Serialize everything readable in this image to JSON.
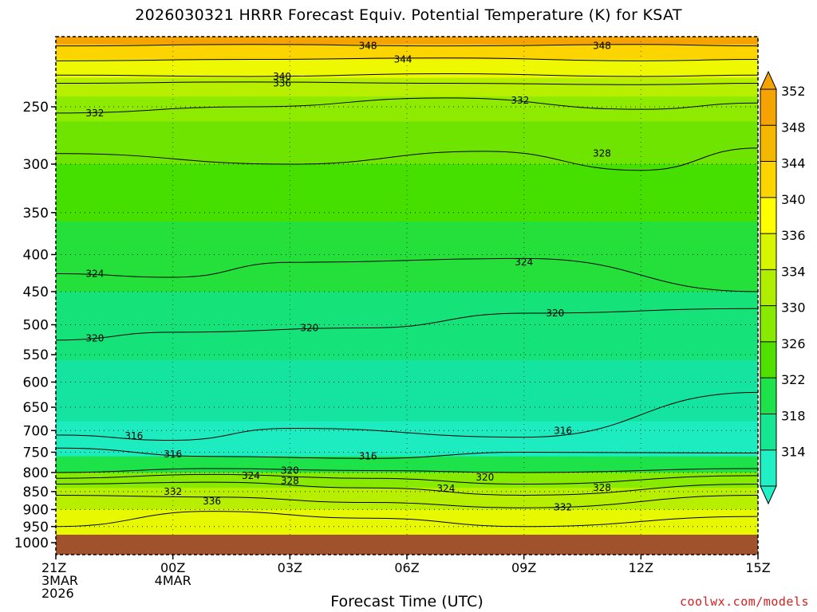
{
  "title": "2026030321 HRRR Forecast Equiv. Potential Temperature (K) for KSAT",
  "xlabel": "Forecast Time (UTC)",
  "credit": "coolwx.com/models",
  "chart_data": {
    "type": "heatmap",
    "title": "2026030321 HRRR Forecast Equiv. Potential Temperature (K) for KSAT",
    "xlabel": "Forecast Time (UTC)",
    "ylabel": "",
    "x_ticks": [
      {
        "hour": 0,
        "lines": [
          "21Z",
          "3MAR",
          "2026"
        ]
      },
      {
        "hour": 3,
        "lines": [
          "00Z",
          "4MAR"
        ]
      },
      {
        "hour": 6,
        "lines": [
          "03Z"
        ]
      },
      {
        "hour": 9,
        "lines": [
          "06Z"
        ]
      },
      {
        "hour": 12,
        "lines": [
          "09Z"
        ]
      },
      {
        "hour": 15,
        "lines": [
          "12Z"
        ]
      },
      {
        "hour": 18,
        "lines": [
          "15Z"
        ]
      }
    ],
    "xlim": [
      0,
      18
    ],
    "y_ticks": [
      250,
      300,
      350,
      400,
      450,
      500,
      550,
      600,
      650,
      700,
      750,
      800,
      850,
      900,
      950,
      1000
    ],
    "ylim": [
      975,
      200
    ],
    "y_scale": "log",
    "grid": true,
    "colorbar": {
      "ticks": [
        352,
        348,
        344,
        340,
        336,
        334,
        330,
        326,
        322,
        318,
        314
      ],
      "segments": [
        {
          "lo": 352,
          "hi": 356,
          "color": "#f5a300"
        },
        {
          "lo": 348,
          "hi": 352,
          "color": "#f5b800"
        },
        {
          "lo": 344,
          "hi": 348,
          "color": "#fcd500"
        },
        {
          "lo": 340,
          "hi": 344,
          "color": "#ffff00"
        },
        {
          "lo": 336,
          "hi": 340,
          "color": "#d8f500"
        },
        {
          "lo": 334,
          "hi": 336,
          "color": "#b0ee00"
        },
        {
          "lo": 330,
          "hi": 334,
          "color": "#88ea00"
        },
        {
          "lo": 326,
          "hi": 330,
          "color": "#4fe000"
        },
        {
          "lo": 322,
          "hi": 326,
          "color": "#1ee24a"
        },
        {
          "lo": 318,
          "hi": 322,
          "color": "#16e691"
        },
        {
          "lo": 314,
          "hi": 318,
          "color": "#20f0c4"
        }
      ]
    },
    "bands": [
      {
        "p": 205,
        "color": "#f5a300"
      },
      {
        "p": 215,
        "color": "#fcd500"
      },
      {
        "p": 228,
        "color": "#eef800"
      },
      {
        "p": 242,
        "color": "#b8ee00"
      },
      {
        "p": 262,
        "color": "#8eeb00"
      },
      {
        "p": 300,
        "color": "#6fe400"
      },
      {
        "p": 360,
        "color": "#45df00"
      },
      {
        "p": 450,
        "color": "#25e03a"
      },
      {
        "p": 560,
        "color": "#16e27a"
      },
      {
        "p": 680,
        "color": "#14e4a0"
      },
      {
        "p": 760,
        "color": "#1debc0"
      },
      {
        "p": 800,
        "color": "#1ee24a"
      },
      {
        "p": 840,
        "color": "#88ea00"
      },
      {
        "p": 900,
        "color": "#b8ee00"
      },
      {
        "p": 975,
        "color": "#e8f800"
      }
    ],
    "contour_levels": [
      314,
      316,
      318,
      320,
      322,
      324,
      326,
      328,
      330,
      332,
      334,
      336,
      338,
      340,
      342,
      344,
      346,
      348
    ],
    "contours": [
      {
        "level": 348,
        "points": [
          [
            0,
            206
          ],
          [
            5,
            205
          ],
          [
            10,
            206
          ],
          [
            15,
            205
          ],
          [
            18,
            206
          ]
        ]
      },
      {
        "level": 344,
        "points": [
          [
            0,
            216
          ],
          [
            5,
            215
          ],
          [
            10,
            214
          ],
          [
            15,
            216
          ],
          [
            18,
            215
          ]
        ]
      },
      {
        "level": 340,
        "points": [
          [
            0,
            226
          ],
          [
            5,
            227
          ],
          [
            10,
            225
          ],
          [
            15,
            227
          ],
          [
            18,
            226
          ]
        ]
      },
      {
        "level": 336,
        "points": [
          [
            0,
            232
          ],
          [
            5,
            231
          ],
          [
            10,
            232
          ],
          [
            15,
            233
          ],
          [
            18,
            232
          ]
        ]
      },
      {
        "level": 332,
        "points": [
          [
            0,
            255
          ],
          [
            5,
            250
          ],
          [
            10,
            243
          ],
          [
            15,
            252
          ],
          [
            18,
            247
          ]
        ]
      },
      {
        "level": 328,
        "points": [
          [
            0,
            290
          ],
          [
            6,
            300
          ],
          [
            11,
            288
          ],
          [
            15,
            306
          ],
          [
            18,
            285
          ]
        ]
      },
      {
        "level": 324,
        "points": [
          [
            0,
            425
          ],
          [
            3,
            430
          ],
          [
            6,
            410
          ],
          [
            12,
            405
          ],
          [
            18,
            450
          ]
        ]
      },
      {
        "level": 320,
        "points": [
          [
            0,
            525
          ],
          [
            3,
            512
          ],
          [
            8,
            505
          ],
          [
            12,
            482
          ],
          [
            18,
            475
          ]
        ]
      },
      {
        "level": 316,
        "points": [
          [
            0,
            710
          ],
          [
            3,
            722
          ],
          [
            6,
            695
          ],
          [
            12,
            715
          ],
          [
            18,
            620
          ]
        ]
      },
      {
        "level": 316,
        "points": [
          [
            0,
            740
          ],
          [
            4,
            760
          ],
          [
            8,
            765
          ],
          [
            12,
            750
          ],
          [
            18,
            752
          ]
        ]
      },
      {
        "level": 320,
        "points": [
          [
            0,
            800
          ],
          [
            4,
            790
          ],
          [
            8,
            795
          ],
          [
            12,
            800
          ],
          [
            18,
            790
          ]
        ]
      },
      {
        "level": 324,
        "points": [
          [
            0,
            815
          ],
          [
            4,
            805
          ],
          [
            8,
            815
          ],
          [
            12,
            830
          ],
          [
            18,
            808
          ]
        ]
      },
      {
        "level": 328,
        "points": [
          [
            0,
            830
          ],
          [
            4,
            825
          ],
          [
            8,
            840
          ],
          [
            12,
            860
          ],
          [
            18,
            830
          ]
        ]
      },
      {
        "level": 332,
        "points": [
          [
            0,
            860
          ],
          [
            4,
            865
          ],
          [
            8,
            880
          ],
          [
            12,
            895
          ],
          [
            18,
            860
          ]
        ]
      },
      {
        "level": 336,
        "points": [
          [
            0,
            950
          ],
          [
            4,
            905
          ],
          [
            8,
            925
          ],
          [
            12,
            950
          ],
          [
            18,
            920
          ]
        ]
      }
    ],
    "labels": [
      {
        "text": "348",
        "hour": 8.0,
        "p": 206
      },
      {
        "text": "344",
        "hour": 8.9,
        "p": 215
      },
      {
        "text": "348",
        "hour": 14.0,
        "p": 206
      },
      {
        "text": "340",
        "hour": 5.8,
        "p": 227
      },
      {
        "text": "336",
        "hour": 5.8,
        "p": 232
      },
      {
        "text": "332",
        "hour": 1.0,
        "p": 255
      },
      {
        "text": "332",
        "hour": 11.9,
        "p": 245
      },
      {
        "text": "328",
        "hour": 14.0,
        "p": 290
      },
      {
        "text": "324",
        "hour": 1.0,
        "p": 425
      },
      {
        "text": "324",
        "hour": 12.0,
        "p": 410
      },
      {
        "text": "320",
        "hour": 1.0,
        "p": 522
      },
      {
        "text": "320",
        "hour": 6.5,
        "p": 505
      },
      {
        "text": "320",
        "hour": 12.8,
        "p": 482
      },
      {
        "text": "316",
        "hour": 2.0,
        "p": 712
      },
      {
        "text": "316",
        "hour": 13.0,
        "p": 700
      },
      {
        "text": "316",
        "hour": 3.0,
        "p": 755
      },
      {
        "text": "316",
        "hour": 8.0,
        "p": 760
      },
      {
        "text": "320",
        "hour": 6.0,
        "p": 795
      },
      {
        "text": "324",
        "hour": 5.0,
        "p": 808
      },
      {
        "text": "328",
        "hour": 6.0,
        "p": 822
      },
      {
        "text": "320",
        "hour": 11.0,
        "p": 812
      },
      {
        "text": "324",
        "hour": 10.0,
        "p": 842
      },
      {
        "text": "328",
        "hour": 14.0,
        "p": 840
      },
      {
        "text": "332",
        "hour": 3.0,
        "p": 850
      },
      {
        "text": "332",
        "hour": 13.0,
        "p": 893
      },
      {
        "text": "336",
        "hour": 4.0,
        "p": 877
      }
    ],
    "ground": {
      "p": 975,
      "color": "#a0522d"
    }
  }
}
